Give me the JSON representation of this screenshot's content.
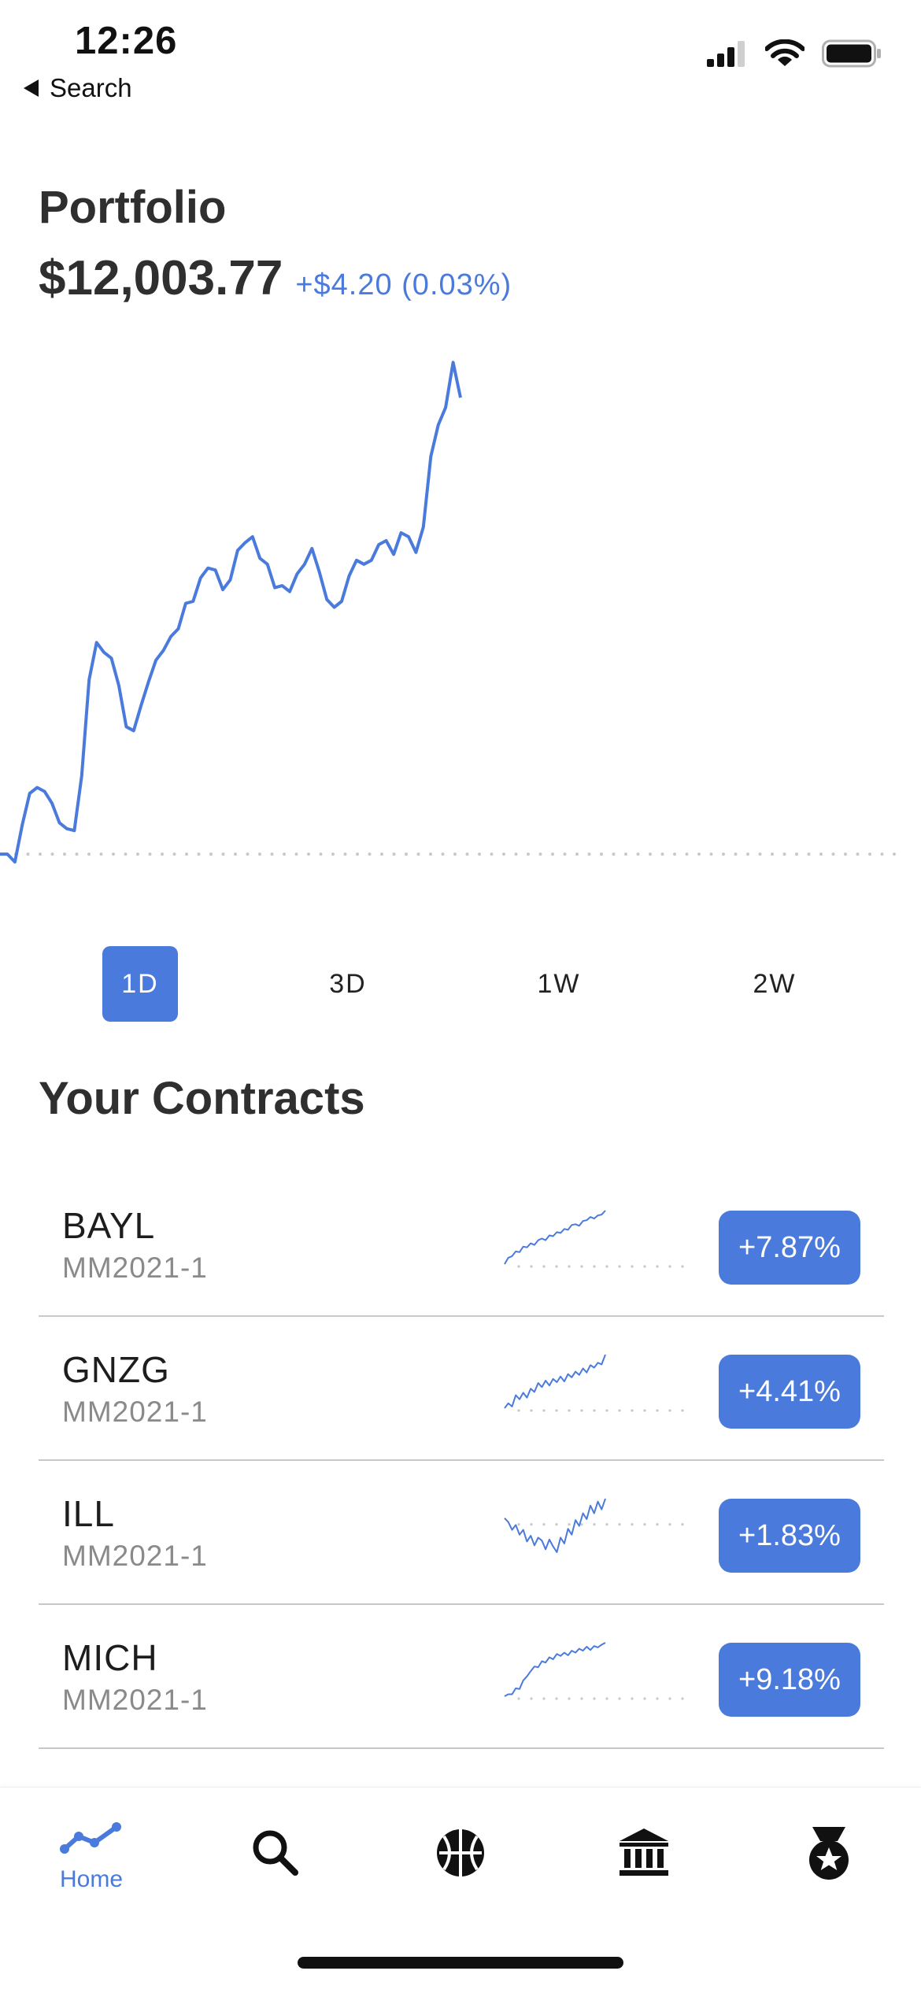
{
  "status_bar": {
    "time": "12:26",
    "back_label": "Search",
    "icons": [
      "signal-icon",
      "wifi-icon",
      "battery-icon"
    ]
  },
  "portfolio": {
    "title": "Portfolio",
    "value": "$12,003.77",
    "change": "+$4.20  (0.03%)"
  },
  "colors": {
    "accent": "#4a7bdc",
    "baseline_dots": "#c8c8c8",
    "text_dark": "#2f2f2f",
    "text_muted": "#8a8a8a"
  },
  "chart_data": {
    "type": "line",
    "series": [
      {
        "values": [
          0.0,
          0.0,
          -0.4,
          1.5,
          3.1,
          3.4,
          3.2,
          2.6,
          1.6,
          1.3,
          1.2,
          4.0,
          8.9,
          10.8,
          10.3,
          10.0,
          8.6,
          6.5,
          6.3,
          7.6,
          8.8,
          9.9,
          10.4,
          11.1,
          11.5,
          12.8,
          12.9,
          14.1,
          14.6,
          14.5,
          13.5,
          14.0,
          15.5,
          15.9,
          16.2,
          15.1,
          14.8,
          13.6,
          13.7,
          13.4,
          14.3,
          14.8,
          15.6,
          14.4,
          13.0,
          12.6,
          12.9,
          14.2,
          15.0,
          14.8,
          15.0,
          15.8,
          16.0,
          15.3,
          16.4,
          16.2,
          15.4,
          16.7,
          20.3,
          21.9,
          22.8,
          25.1,
          23.3
        ]
      }
    ],
    "baseline": 0,
    "ylim": [
      -1,
      26
    ],
    "grid": false,
    "legend": "none"
  },
  "ranges": [
    {
      "label": "1D",
      "active": true
    },
    {
      "label": "3D",
      "active": false
    },
    {
      "label": "1W",
      "active": false
    },
    {
      "label": "2W",
      "active": false
    }
  ],
  "contracts_section": {
    "title": "Your Contracts",
    "items": [
      {
        "ticker": "BAYL",
        "subtitle": "MM2021-1",
        "change": "+7.87%",
        "spark": [
          0,
          0.8,
          1.0,
          1.6,
          1.5,
          2.2,
          2.1,
          2.6,
          2.4,
          3.0,
          3.2,
          3.0,
          3.6,
          3.5,
          4.0,
          3.9,
          4.4,
          4.3,
          4.9,
          5.0,
          4.8,
          5.4,
          5.5,
          5.9,
          5.7,
          6.1,
          6.2,
          6.7
        ]
      },
      {
        "ticker": "GNZG",
        "subtitle": "MM2021-1",
        "change": "+4.41%",
        "spark": [
          0,
          0.6,
          0.2,
          1.6,
          1.1,
          1.9,
          1.3,
          2.4,
          2.0,
          3.1,
          2.6,
          3.4,
          2.8,
          3.6,
          3.2,
          3.9,
          3.3,
          4.2,
          3.8,
          4.5,
          4.1,
          4.9,
          4.4,
          5.3,
          5.0,
          5.6,
          5.4,
          6.6
        ]
      },
      {
        "ticker": "ILL",
        "subtitle": "MM2021-1",
        "change": "+1.83%",
        "spark": [
          0.4,
          0.0,
          -0.8,
          -0.3,
          -1.3,
          -0.8,
          -2.0,
          -1.4,
          -2.4,
          -1.6,
          -1.9,
          -2.8,
          -1.8,
          -2.5,
          -3.1,
          -1.6,
          -2.2,
          -0.7,
          -1.3,
          0.2,
          -0.4,
          0.9,
          0.3,
          1.7,
          0.9,
          2.1,
          1.3,
          2.4
        ]
      },
      {
        "ticker": "MICH",
        "subtitle": "MM2021-1",
        "change": "+9.18%",
        "spark": [
          0,
          0.3,
          0.3,
          1.2,
          1.1,
          2.4,
          3.0,
          3.8,
          4.5,
          4.4,
          5.3,
          5.1,
          5.9,
          5.6,
          6.4,
          6.1,
          6.6,
          6.2,
          6.9,
          6.6,
          7.2,
          6.9,
          7.5,
          7.0,
          7.6,
          7.4,
          7.8,
          8.1
        ]
      }
    ]
  },
  "tab_bar": {
    "home_label": "Home",
    "items": [
      "chart-line-icon",
      "search-icon",
      "basketball-icon",
      "bank-icon",
      "medal-icon"
    ]
  }
}
